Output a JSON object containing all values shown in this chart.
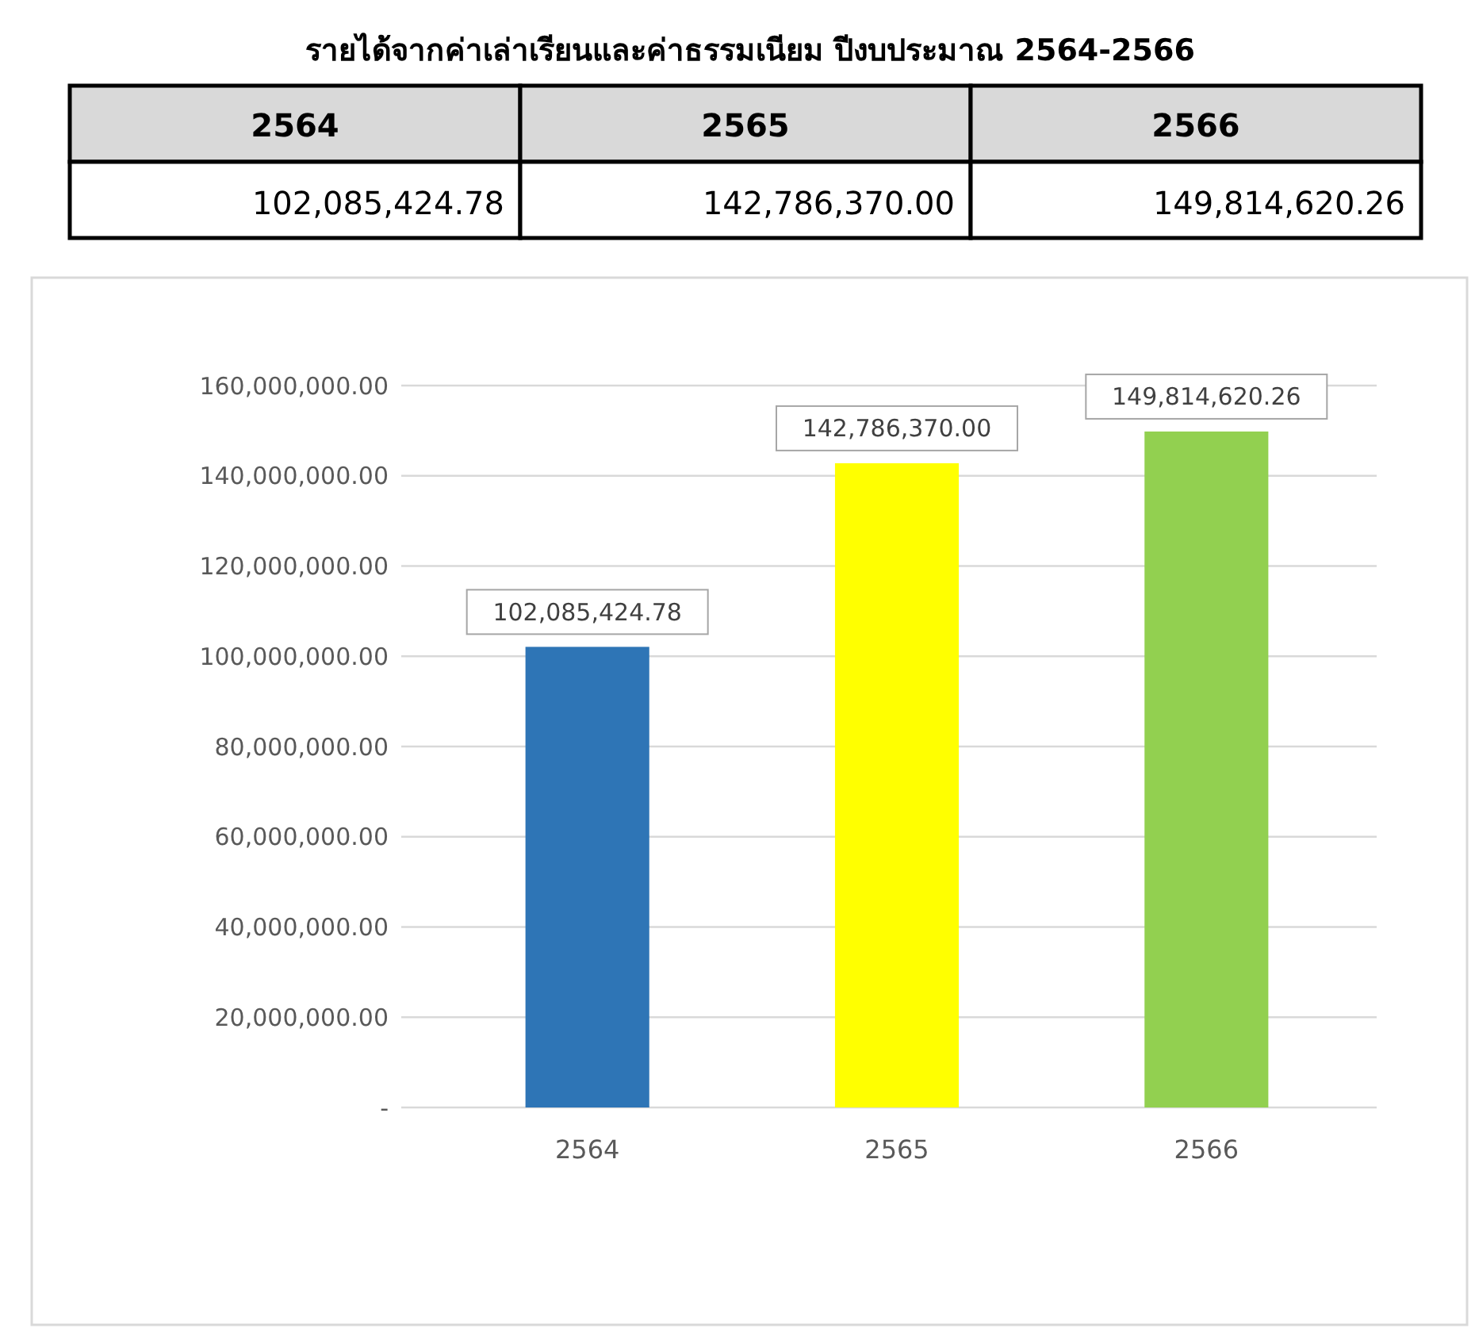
{
  "chart_data": {
    "type": "bar",
    "title": "รายได้จากค่าเล่าเรียนและค่าธรรมเนียม ปีงบประมาณ 2564-2566",
    "categories": [
      "2564",
      "2565",
      "2566"
    ],
    "values": [
      102085424.78,
      142786370.0,
      149814620.26
    ],
    "colors": [
      "#2e75b6",
      "#ffff00",
      "#92d050"
    ],
    "value_labels": [
      "102,085,424.78",
      "142,786,370.00",
      "149,814,620.26"
    ],
    "ylim": [
      0,
      160000000
    ],
    "yticks": [
      {
        "value": 0,
        "label": "-"
      },
      {
        "value": 20000000,
        "label": "20,000,000.00"
      },
      {
        "value": 40000000,
        "label": "40,000,000.00"
      },
      {
        "value": 60000000,
        "label": "60,000,000.00"
      },
      {
        "value": 80000000,
        "label": "80,000,000.00"
      },
      {
        "value": 100000000,
        "label": "100,000,000.00"
      },
      {
        "value": 120000000,
        "label": "120,000,000.00"
      },
      {
        "value": 140000000,
        "label": "140,000,000.00"
      },
      {
        "value": 160000000,
        "label": "160,000,000.00"
      }
    ],
    "grid": "y"
  }
}
